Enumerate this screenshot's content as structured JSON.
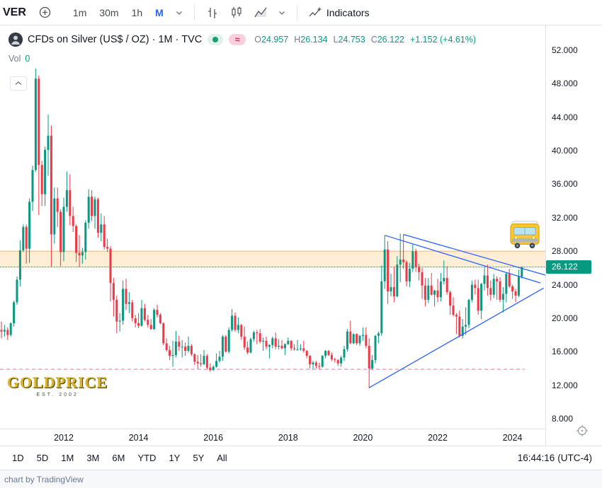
{
  "toolbar": {
    "ticker_visible": "VER",
    "intervals": [
      "1m",
      "30m",
      "1h",
      "M"
    ],
    "active_interval": "M",
    "indicators_label": "Indicators"
  },
  "legend": {
    "title": "CFDs on Silver (US$ / OZ) · 1M · TVC",
    "delay_badge": "≈",
    "o_label": "O",
    "o_value": "24.957",
    "h_label": "H",
    "h_value": "26.134",
    "l_label": "L",
    "l_value": "24.753",
    "c_label": "C",
    "c_value": "26.122",
    "change": "+1.152 (+4.61%)",
    "vol_label": "Vol",
    "vol_value": "0"
  },
  "price_scale": {
    "ticks": [
      "52.000",
      "48.000",
      "44.000",
      "40.000",
      "36.000",
      "32.000",
      "28.000",
      "24.000",
      "20.000",
      "16.000",
      "12.000",
      "8.000"
    ],
    "last_price": "26.122"
  },
  "time_scale": {
    "years": [
      "2012",
      "2014",
      "2016",
      "2018",
      "2020",
      "2022",
      "2024"
    ]
  },
  "footer": {
    "ranges": [
      "1D",
      "5D",
      "1M",
      "3M",
      "6M",
      "YTD",
      "1Y",
      "5Y",
      "All"
    ],
    "clock": "16:44:16",
    "timezone": "(UTC-4)"
  },
  "attribution": "chart by TradingView",
  "watermark": {
    "text": "GOLDPRICE",
    "subtext": "EST. 2002"
  },
  "chart_data": {
    "type": "candlestick",
    "title": "CFDs on Silver (US$ / OZ)",
    "interval": "1M",
    "exchange": "TVC",
    "ylim": [
      8,
      52
    ],
    "start_month": "2010-05",
    "colors": {
      "up": "#089981",
      "down": "#f23645"
    },
    "candles": [
      [
        18.6,
        19.6,
        17.6,
        18.4
      ],
      [
        18.4,
        19.2,
        17.8,
        18.6
      ],
      [
        18.6,
        18.9,
        17.4,
        18.0
      ],
      [
        18.0,
        19.5,
        17.8,
        19.4
      ],
      [
        19.4,
        22.1,
        19.0,
        21.9
      ],
      [
        21.9,
        25.0,
        21.6,
        24.6
      ],
      [
        24.6,
        29.3,
        23.8,
        28.1
      ],
      [
        28.1,
        31.2,
        27.9,
        30.9
      ],
      [
        30.9,
        31.2,
        26.5,
        28.3
      ],
      [
        28.3,
        34.3,
        26.6,
        33.9
      ],
      [
        33.9,
        38.2,
        32.8,
        37.7
      ],
      [
        37.7,
        49.8,
        37.5,
        48.6
      ],
      [
        48.6,
        49.0,
        32.3,
        38.3
      ],
      [
        38.3,
        38.8,
        33.4,
        34.8
      ],
      [
        34.8,
        40.5,
        33.4,
        40.1
      ],
      [
        40.1,
        44.3,
        37.0,
        41.8
      ],
      [
        41.8,
        43.0,
        26.1,
        30.0
      ],
      [
        30.0,
        35.6,
        28.9,
        34.3
      ],
      [
        34.3,
        35.6,
        30.9,
        32.7
      ],
      [
        32.7,
        33.0,
        26.2,
        27.9
      ],
      [
        27.9,
        34.4,
        26.8,
        33.3
      ],
      [
        33.3,
        37.5,
        32.7,
        35.3
      ],
      [
        35.3,
        37.2,
        31.1,
        32.2
      ],
      [
        32.2,
        33.3,
        30.3,
        31.0
      ],
      [
        31.0,
        31.2,
        26.7,
        27.8
      ],
      [
        27.8,
        29.9,
        26.1,
        27.5
      ],
      [
        27.5,
        28.4,
        26.5,
        27.9
      ],
      [
        27.9,
        31.7,
        27.0,
        31.4
      ],
      [
        31.4,
        35.4,
        30.7,
        34.5
      ],
      [
        34.5,
        35.3,
        31.6,
        32.2
      ],
      [
        32.2,
        34.5,
        30.7,
        34.2
      ],
      [
        34.2,
        34.4,
        29.6,
        30.2
      ],
      [
        30.2,
        32.5,
        29.2,
        31.2
      ],
      [
        31.2,
        32.2,
        28.2,
        28.5
      ],
      [
        28.5,
        29.5,
        27.9,
        28.3
      ],
      [
        28.3,
        28.6,
        22.0,
        24.2
      ],
      [
        24.2,
        24.8,
        20.2,
        22.2
      ],
      [
        22.2,
        22.7,
        18.2,
        19.6
      ],
      [
        19.6,
        20.6,
        18.4,
        19.7
      ],
      [
        19.7,
        24.5,
        19.2,
        23.5
      ],
      [
        23.5,
        24.7,
        21.0,
        21.7
      ],
      [
        21.7,
        23.1,
        20.6,
        21.9
      ],
      [
        21.9,
        22.2,
        19.6,
        20.0
      ],
      [
        20.0,
        20.4,
        18.9,
        19.4
      ],
      [
        19.4,
        20.6,
        18.8,
        19.1
      ],
      [
        19.1,
        22.2,
        19.0,
        21.2
      ],
      [
        21.2,
        21.7,
        19.6,
        19.8
      ],
      [
        19.8,
        20.4,
        18.9,
        19.2
      ],
      [
        19.2,
        19.9,
        18.6,
        18.7
      ],
      [
        18.7,
        21.2,
        18.6,
        21.0
      ],
      [
        21.0,
        21.6,
        20.1,
        20.4
      ],
      [
        20.4,
        20.6,
        19.3,
        19.4
      ],
      [
        19.4,
        19.5,
        16.8,
        17.0
      ],
      [
        17.0,
        17.6,
        16.0,
        16.2
      ],
      [
        16.2,
        16.7,
        15.0,
        15.5
      ],
      [
        15.5,
        17.3,
        14.2,
        15.6
      ],
      [
        15.6,
        18.5,
        15.3,
        17.2
      ],
      [
        17.2,
        17.9,
        16.1,
        16.6
      ],
      [
        16.6,
        17.4,
        15.3,
        16.6
      ],
      [
        16.6,
        17.1,
        15.5,
        16.1
      ],
      [
        16.1,
        17.8,
        15.9,
        16.7
      ],
      [
        16.7,
        16.9,
        15.5,
        15.7
      ],
      [
        15.7,
        15.8,
        14.4,
        14.8
      ],
      [
        14.8,
        15.6,
        13.9,
        14.6
      ],
      [
        14.6,
        15.7,
        14.2,
        14.5
      ],
      [
        14.5,
        16.2,
        14.4,
        15.5
      ],
      [
        15.5,
        15.7,
        13.9,
        14.1
      ],
      [
        14.1,
        14.6,
        13.6,
        13.8
      ],
      [
        13.8,
        14.4,
        13.7,
        14.2
      ],
      [
        14.2,
        15.8,
        14.1,
        14.9
      ],
      [
        14.9,
        16.1,
        14.7,
        15.4
      ],
      [
        15.4,
        18.0,
        14.9,
        17.8
      ],
      [
        17.8,
        18.0,
        15.9,
        16.0
      ],
      [
        16.0,
        18.9,
        15.8,
        18.6
      ],
      [
        18.6,
        21.1,
        18.4,
        20.3
      ],
      [
        20.3,
        20.7,
        18.4,
        18.6
      ],
      [
        18.6,
        20.1,
        18.2,
        19.2
      ],
      [
        19.2,
        19.3,
        17.4,
        17.8
      ],
      [
        17.8,
        19.0,
        16.2,
        16.5
      ],
      [
        16.5,
        17.2,
        15.7,
        15.9
      ],
      [
        15.9,
        17.7,
        15.8,
        17.5
      ],
      [
        17.5,
        18.5,
        17.2,
        18.3
      ],
      [
        18.3,
        18.6,
        16.9,
        18.2
      ],
      [
        18.2,
        18.7,
        17.0,
        17.2
      ],
      [
        17.2,
        17.7,
        16.1,
        17.3
      ],
      [
        17.3,
        17.8,
        16.3,
        16.6
      ],
      [
        16.6,
        16.9,
        15.2,
        16.8
      ],
      [
        16.8,
        17.8,
        16.4,
        17.6
      ],
      [
        17.6,
        18.3,
        16.3,
        16.6
      ],
      [
        16.6,
        17.5,
        16.3,
        16.7
      ],
      [
        16.7,
        17.4,
        16.3,
        16.4
      ],
      [
        16.4,
        17.0,
        15.6,
        16.9
      ],
      [
        16.9,
        17.7,
        16.8,
        17.3
      ],
      [
        17.3,
        17.4,
        16.1,
        16.4
      ],
      [
        16.4,
        16.9,
        16.1,
        16.3
      ],
      [
        16.3,
        17.4,
        16.1,
        16.3
      ],
      [
        16.3,
        16.9,
        16.1,
        16.4
      ],
      [
        16.4,
        17.3,
        15.9,
        16.1
      ],
      [
        16.1,
        16.2,
        15.2,
        15.5
      ],
      [
        15.5,
        15.6,
        14.0,
        14.5
      ],
      [
        14.5,
        14.9,
        13.95,
        14.7
      ],
      [
        14.7,
        14.9,
        14.0,
        14.3
      ],
      [
        14.3,
        14.7,
        13.9,
        14.2
      ],
      [
        14.2,
        15.6,
        14.1,
        15.5
      ],
      [
        15.5,
        16.2,
        15.2,
        16.1
      ],
      [
        16.1,
        16.2,
        15.5,
        15.6
      ],
      [
        15.6,
        15.9,
        14.9,
        15.1
      ],
      [
        15.1,
        15.3,
        14.7,
        15.0
      ],
      [
        15.0,
        15.1,
        14.3,
        14.6
      ],
      [
        14.6,
        15.5,
        14.2,
        15.3
      ],
      [
        15.3,
        16.7,
        14.9,
        16.3
      ],
      [
        16.3,
        18.7,
        16.0,
        18.4
      ],
      [
        18.4,
        19.7,
        16.9,
        17.0
      ],
      [
        17.0,
        18.2,
        16.9,
        18.1
      ],
      [
        18.1,
        18.2,
        16.8,
        17.0
      ],
      [
        17.0,
        18.0,
        16.7,
        17.9
      ],
      [
        17.9,
        18.9,
        17.3,
        18.0
      ],
      [
        18.0,
        18.9,
        16.4,
        16.7
      ],
      [
        16.7,
        17.6,
        11.63,
        14.0
      ],
      [
        14.0,
        15.6,
        13.8,
        15.0
      ],
      [
        15.0,
        18.0,
        14.6,
        17.9
      ],
      [
        17.9,
        18.4,
        17.0,
        18.2
      ],
      [
        18.2,
        26.3,
        17.9,
        24.4
      ],
      [
        24.4,
        29.86,
        23.5,
        28.2
      ],
      [
        28.2,
        29.2,
        21.7,
        23.2
      ],
      [
        23.2,
        25.3,
        22.6,
        23.7
      ],
      [
        23.7,
        26.1,
        21.9,
        22.6
      ],
      [
        22.6,
        27.4,
        22.5,
        26.4
      ],
      [
        26.4,
        30.1,
        24.3,
        27.0
      ],
      [
        27.0,
        30.0,
        25.9,
        26.7
      ],
      [
        26.7,
        26.9,
        23.8,
        24.4
      ],
      [
        24.4,
        26.6,
        23.7,
        25.9
      ],
      [
        25.9,
        28.8,
        25.5,
        28.0
      ],
      [
        28.0,
        28.3,
        25.5,
        26.1
      ],
      [
        26.1,
        26.5,
        24.5,
        25.5
      ],
      [
        25.5,
        26.0,
        22.3,
        23.9
      ],
      [
        23.9,
        24.8,
        21.4,
        22.2
      ],
      [
        22.2,
        24.8,
        21.8,
        23.9
      ],
      [
        23.9,
        25.4,
        22.7,
        22.8
      ],
      [
        22.8,
        23.4,
        21.4,
        23.3
      ],
      [
        23.3,
        24.7,
        21.9,
        22.5
      ],
      [
        22.5,
        25.4,
        22.0,
        24.4
      ],
      [
        24.4,
        26.9,
        24.0,
        24.8
      ],
      [
        24.8,
        26.2,
        22.8,
        23.1
      ],
      [
        23.1,
        23.3,
        20.4,
        21.5
      ],
      [
        21.5,
        22.5,
        20.2,
        20.4
      ],
      [
        20.4,
        20.6,
        18.1,
        20.2
      ],
      [
        20.2,
        20.9,
        17.7,
        17.9
      ],
      [
        17.9,
        19.9,
        17.56,
        19.0
      ],
      [
        19.0,
        21.3,
        18.0,
        19.2
      ],
      [
        19.2,
        22.3,
        18.8,
        22.2
      ],
      [
        22.2,
        24.5,
        21.9,
        24.0
      ],
      [
        24.0,
        24.6,
        22.8,
        23.6
      ],
      [
        23.6,
        24.6,
        20.4,
        20.9
      ],
      [
        20.9,
        24.2,
        19.9,
        24.1
      ],
      [
        24.1,
        26.1,
        23.3,
        25.1
      ],
      [
        25.1,
        26.4,
        22.7,
        23.6
      ],
      [
        23.6,
        24.5,
        22.1,
        22.8
      ],
      [
        22.8,
        25.3,
        22.4,
        24.7
      ],
      [
        24.7,
        25.0,
        22.2,
        24.4
      ],
      [
        24.4,
        24.9,
        21.9,
        22.2
      ],
      [
        22.2,
        23.7,
        20.7,
        22.9
      ],
      [
        22.9,
        25.5,
        21.9,
        25.3
      ],
      [
        25.3,
        25.9,
        23.6,
        23.8
      ],
      [
        23.8,
        24.0,
        22.3,
        23.2
      ],
      [
        23.2,
        23.5,
        21.9,
        22.7
      ],
      [
        22.7,
        25.8,
        22.5,
        24.97
      ],
      [
        24.957,
        26.134,
        24.753,
        26.122
      ]
    ],
    "overlays": {
      "resistance_band": {
        "top": 28.0,
        "bottom": 26.12,
        "fill": "rgba(255,152,0,0.16)",
        "edge": "rgba(245,124,0,0.55)"
      },
      "support_dashed": {
        "price": 13.9,
        "end_time": "2024-05",
        "color": "#f48fb1"
      },
      "trendline_color": "#2962ff",
      "trendlines": [
        {
          "t1": "2020-03",
          "p1": 11.7,
          "t2": "2024-11",
          "p2": 23.6
        },
        {
          "t1": "2020-08",
          "p1": 29.9,
          "t2": "2024-10",
          "p2": 24.2
        },
        {
          "t1": "2021-02",
          "p1": 30.0,
          "t2": "2024-12",
          "p2": 25.1
        }
      ],
      "sticker": {
        "icon": "bus",
        "time": "2024-05",
        "price": 30.0
      }
    }
  }
}
